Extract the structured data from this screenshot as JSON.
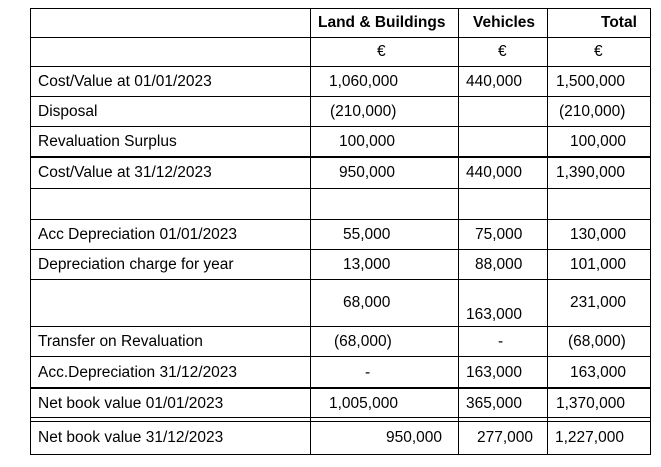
{
  "columns": {
    "land": "Land & Buildings",
    "vehicles": "Vehicles",
    "total": "Total"
  },
  "currency": "€",
  "rows": [
    {
      "label": "Cost/Value at 01/01/2023",
      "land": "1,060,000",
      "vehicles": "440,000",
      "total": "1,500,000"
    },
    {
      "label": "Disposal",
      "land": "(210,000)",
      "vehicles": "",
      "total": "(210,000)"
    },
    {
      "label": "Revaluation Surplus",
      "land": "100,000",
      "vehicles": "",
      "total": "100,000"
    },
    {
      "label": "Cost/Value at 31/12/2023",
      "land": "950,000",
      "vehicles": "440,000",
      "total": "1,390,000"
    },
    {
      "label": "Acc Depreciation  01/01/2023",
      "land": "55,000",
      "vehicles": "75,000",
      "total": "130,000"
    },
    {
      "label": "Depreciation charge for  year",
      "land": "13,000",
      "vehicles": "88,000",
      "total": "101,000"
    },
    {
      "label": "",
      "land": "68,000",
      "vehicles": "163,000",
      "total": "231,000"
    },
    {
      "label": "Transfer on Revaluation",
      "land": "(68,000)",
      "vehicles": "-",
      "total": "(68,000)"
    },
    {
      "label": "Acc.Depreciation 31/12/2023",
      "land": "-",
      "vehicles": "163,000",
      "total": "163,000"
    },
    {
      "label": "Net book value 01/01/2023",
      "land": "1,005,000",
      "vehicles": "365,000",
      "total": "1,370,000"
    },
    {
      "label": "Net book value 31/12/2023",
      "land": "950,000",
      "vehicles": "277,000",
      "total": "1,227,000"
    }
  ]
}
